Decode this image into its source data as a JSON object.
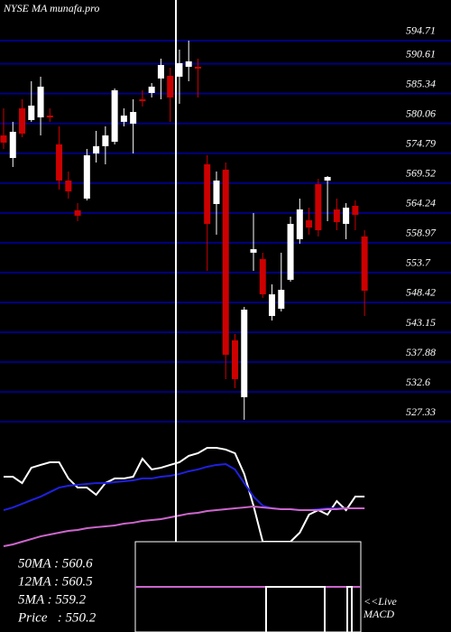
{
  "chart_data": [
    {
      "type": "candlestick",
      "title": "NYSE MA munafa.pro",
      "open": [
        577.95,
        573.96,
        582.74,
        580.67,
        581.14,
        581.46,
        576.36,
        569.97,
        564.71,
        566.78,
        574.76,
        576.04,
        576.83,
        580.35,
        580.03,
        584.34,
        585.45,
        588.01,
        588.49,
        588.33,
        590.08,
        590.08,
        572.84,
        565.82,
        571.89,
        541.72,
        531.67,
        557.21,
        556.09,
        546.03,
        547.31,
        552.42,
        559.6,
        562.95,
        569.33,
        569.97,
        564.87,
        562.31,
        565.5,
        560.08
      ],
      "high": [
        582.74,
        580.35,
        584.34,
        587.53,
        588.33,
        582.74,
        579.55,
        571.57,
        565.98,
        575.56,
        578.75,
        579.55,
        586.25,
        582.74,
        584.34,
        585.93,
        587.21,
        591.52,
        589.92,
        593.11,
        594.71,
        591.52,
        574.44,
        571.57,
        573.16,
        542.84,
        547.63,
        564.23,
        557.21,
        551.62,
        557.21,
        563.59,
        566.78,
        565.18,
        570.29,
        570.77,
        566.78,
        565.98,
        566.46,
        561.19
      ],
      "low": [
        575.56,
        572.37,
        577.63,
        580.35,
        577.95,
        580.35,
        568.38,
        566.78,
        562.79,
        566.46,
        573.16,
        572.84,
        576.36,
        579.55,
        574.76,
        583.06,
        584.66,
        584.34,
        580.35,
        583.54,
        587.53,
        584.66,
        554.01,
        560.4,
        534.86,
        533.27,
        527.68,
        554.01,
        549.22,
        545.23,
        546.83,
        552.1,
        558.8,
        560.4,
        560.08,
        562.79,
        561.19,
        559.6,
        561.19,
        546.03
      ],
      "close": [
        576.67,
        578.59,
        578.27,
        583.22,
        586.57,
        581.14,
        569.97,
        568.06,
        563.75,
        574.44,
        576.04,
        577.95,
        585.93,
        581.46,
        582.1,
        584.02,
        586.57,
        590.4,
        584.66,
        590.72,
        591.04,
        589.76,
        562.31,
        569.97,
        539.17,
        534.86,
        547.15,
        557.84,
        549.86,
        549.86,
        550.66,
        562.31,
        564.87,
        561.67,
        561.19,
        570.61,
        562.63,
        565.18,
        563.91,
        550.5
      ],
      "up_color": "#ffffff",
      "down_color": "#cc0000",
      "grid_color": "#000080",
      "ylim": [
        526.87,
        601.89
      ],
      "yticks": [
        594.71,
        590.61,
        585.34,
        580.06,
        574.79,
        569.52,
        564.24,
        558.97,
        553.7,
        548.42,
        543.15,
        537.88,
        532.6,
        527.33
      ],
      "grid": true,
      "annotations": [
        "50MA : 560.6",
        "12MA : 560.5",
        "5MA : 559.2",
        "Price   : 550.2"
      ]
    },
    {
      "type": "line",
      "label_lines": [
        "<<Live",
        "MACD"
      ],
      "ylim": [
        -10,
        100
      ],
      "series": [
        {
          "color": "#ffffff",
          "values": [
            53.3,
            53.3,
            48.1,
            60.7,
            63.0,
            65.2,
            65.2,
            51.9,
            44.4,
            44.4,
            38.5,
            48.1,
            51.9,
            51.9,
            53.3,
            68.1,
            59.3,
            60.7,
            63.0,
            65.2,
            70.4,
            72.6,
            77.0,
            77.0,
            75.6,
            72.6,
            55.6,
            29.6,
            0,
            0,
            0,
            0,
            7.4,
            22.2,
            25.9,
            22.2,
            33.3,
            25.9,
            37.0,
            37.0
          ]
        },
        {
          "color": "#2020e0",
          "values": [
            25.9,
            28.1,
            31.1,
            34.1,
            37.0,
            40.7,
            44.4,
            45.9,
            46.7,
            47.4,
            48.1,
            48.1,
            48.9,
            49.6,
            50.4,
            51.9,
            51.9,
            53.3,
            54.1,
            55.6,
            57.8,
            59.3,
            61.5,
            63.0,
            63.7,
            59.3,
            48.1,
            37.0,
            29.6,
            27.4,
            26.7,
            26.7,
            25.9,
            25.9,
            26.7,
            27.4,
            27.4,
            27.4,
            27.4,
            27.4
          ]
        },
        {
          "color": "#cc66cc",
          "values": [
            -3.7,
            -2.2,
            0,
            2.2,
            4.4,
            5.9,
            7.4,
            8.9,
            9.6,
            11.1,
            11.9,
            12.6,
            13.3,
            14.8,
            15.6,
            17.0,
            17.8,
            18.5,
            20.0,
            21.5,
            23.0,
            23.7,
            25.2,
            25.9,
            26.7,
            27.4,
            28.1,
            28.9,
            28.1,
            27.4,
            26.7,
            26.7,
            25.9,
            25.9,
            25.9,
            26.7,
            26.7,
            27.4,
            27.4,
            27.4
          ]
        }
      ]
    }
  ]
}
